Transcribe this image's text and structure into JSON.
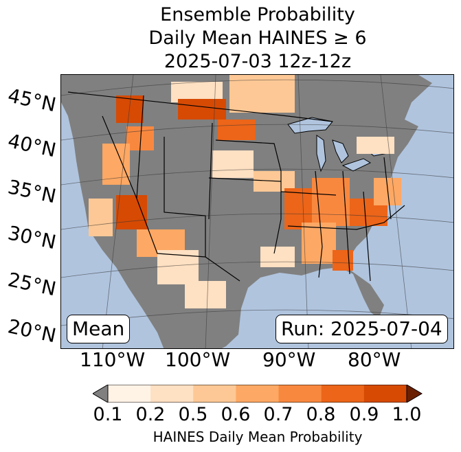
{
  "title": {
    "line1": "Ensemble Probability",
    "line2": "Daily Mean HAINES ≥ 6",
    "line3": "2025-07-03 12z-12z"
  },
  "map": {
    "ocean_color": "#b0c4de",
    "land_color": "#808080",
    "lat_labels": [
      "45°N",
      "40°N",
      "35°N",
      "30°N",
      "25°N",
      "20°N"
    ],
    "lon_labels": [
      "110°W",
      "100°W",
      "90°W",
      "80°W"
    ],
    "stat_badge": "Mean",
    "run_badge": "Run: 2025-07-04"
  },
  "colorbar": {
    "label": "HAINES Daily Mean Probability",
    "ticks": [
      "0.1",
      "0.2",
      "0.5",
      "0.6",
      "0.7",
      "0.8",
      "0.9",
      "1.0"
    ],
    "under_color": "#808080",
    "over_color": "#6b1f02",
    "colors": [
      "#fff3e6",
      "#fee0c2",
      "#fdc895",
      "#fda864",
      "#f9883f",
      "#ec6519",
      "#d64a04"
    ]
  }
}
